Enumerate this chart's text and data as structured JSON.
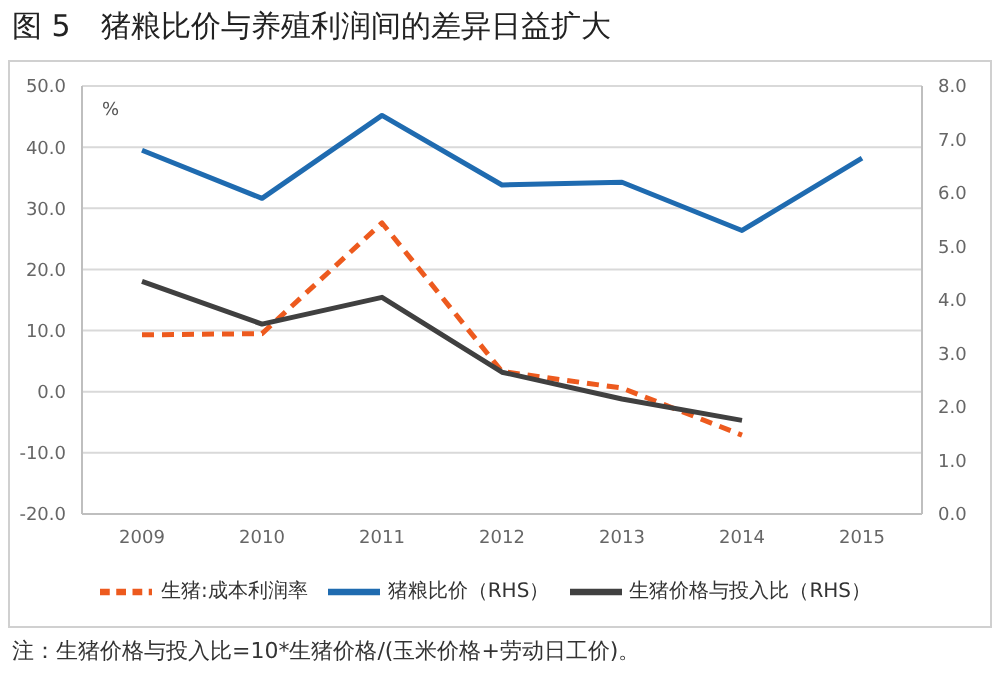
{
  "chart_data": {
    "type": "line",
    "title": "图 5　猪粮比价与养殖利润间的差异日益扩大",
    "categories": [
      "2009",
      "2010",
      "2011",
      "2012",
      "2013",
      "2014",
      "2015"
    ],
    "ylabel": "%",
    "series": [
      {
        "name": "生猪:成本利润率",
        "color": "#ed5a1e",
        "line_style": "dashed",
        "values": [
          9.3,
          9.5,
          27.6,
          3.3,
          0.6,
          -7.1,
          null
        ]
      },
      {
        "name": "猪粮比价（RHS）",
        "color": "#1f6bb0",
        "line_style": "solid",
        "axis": "y2",
        "values": [
          6.8,
          5.9,
          7.45,
          6.15,
          6.2,
          5.3,
          6.65
        ]
      },
      {
        "name": "生猪价格与投入比（RHS）",
        "color": "#404040",
        "line_style": "solid",
        "axis": "y2",
        "values": [
          4.35,
          3.55,
          4.05,
          2.65,
          2.15,
          1.75,
          null
        ]
      }
    ],
    "ylim": [
      -20,
      50
    ],
    "yticks": [
      {
        "value": -20,
        "label": "-20.0"
      },
      {
        "value": -10,
        "label": "-10.0"
      },
      {
        "value": 0,
        "label": "0.0"
      },
      {
        "value": 10,
        "label": "10.0"
      },
      {
        "value": 20,
        "label": "20.0"
      },
      {
        "value": 30,
        "label": "30.0"
      },
      {
        "value": 40,
        "label": "40.0"
      },
      {
        "value": 50,
        "label": "50.0"
      }
    ],
    "y2lim": [
      0,
      8
    ],
    "y2ticks": [
      {
        "value": 0,
        "label": "0.0"
      },
      {
        "value": 1,
        "label": "1.0"
      },
      {
        "value": 2,
        "label": "2.0"
      },
      {
        "value": 3,
        "label": "3.0"
      },
      {
        "value": 4,
        "label": "4.0"
      },
      {
        "value": 5,
        "label": "5.0"
      },
      {
        "value": 6,
        "label": "6.0"
      },
      {
        "value": 7,
        "label": "7.0"
      },
      {
        "value": 8,
        "label": "8.0"
      }
    ],
    "grid": "y",
    "legend": "bottom",
    "marker": "none",
    "annotations": [
      "注：生猪价格与投入比=10*生猪价格/(玉米价格+劳动日工价)。"
    ]
  }
}
